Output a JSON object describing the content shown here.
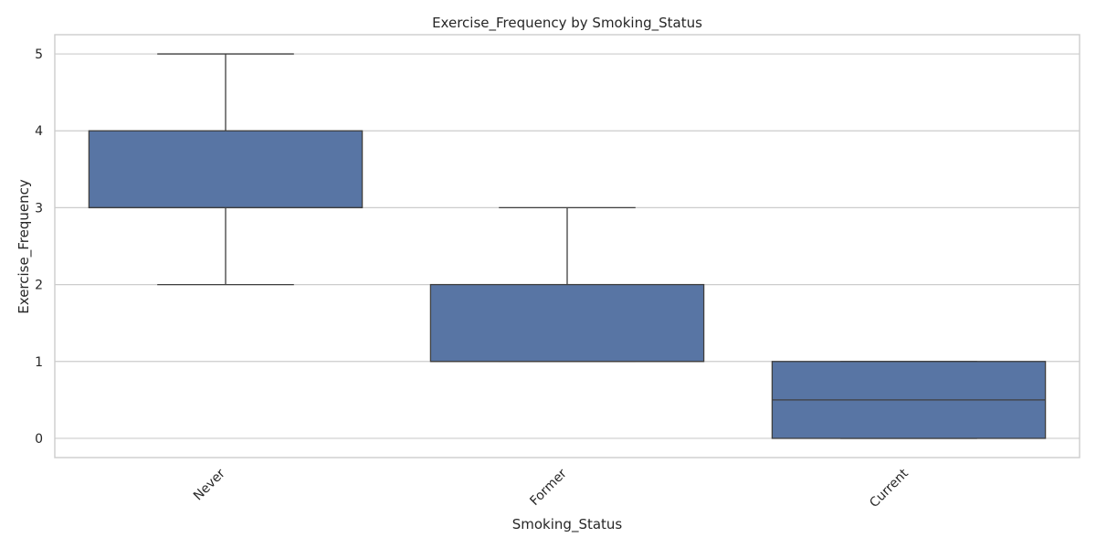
{
  "chart_data": {
    "type": "box",
    "title": "Exercise_Frequency by Smoking_Status",
    "xlabel": "Smoking_Status",
    "ylabel": "Exercise_Frequency",
    "ylim": [
      -0.25,
      5.25
    ],
    "yticks": [
      0,
      1,
      2,
      3,
      4,
      5
    ],
    "grid": true,
    "box_color": "#5875a4",
    "categories": [
      "Never",
      "Former",
      "Current"
    ],
    "boxes": [
      {
        "category": "Never",
        "whisker_low": 2,
        "q1": 3,
        "median": 3,
        "q3": 4,
        "whisker_high": 5
      },
      {
        "category": "Former",
        "whisker_low": 1,
        "q1": 1,
        "median": 1,
        "q3": 2,
        "whisker_high": 3
      },
      {
        "category": "Current",
        "whisker_low": 0,
        "q1": 0,
        "median": 0.5,
        "q3": 1,
        "whisker_high": 1
      }
    ]
  }
}
